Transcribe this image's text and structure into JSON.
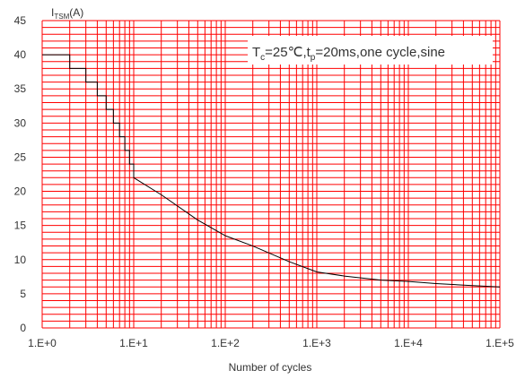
{
  "chart_data": {
    "type": "line",
    "title": "",
    "ylabel": {
      "symbol": "I",
      "subscript": "TSM",
      "unit": "(A)"
    },
    "xlabel": "Number of cycles",
    "xscale": "log",
    "xlim": [
      1,
      100000
    ],
    "ylim": [
      0,
      45
    ],
    "grid": true,
    "x_tick_labels": [
      "1.E+0",
      "1.E+1",
      "1.E+2",
      "1.E+3",
      "1.E+4",
      "1.E+5"
    ],
    "y_tick_labels": [
      "0",
      "5",
      "10",
      "15",
      "20",
      "25",
      "30",
      "35",
      "40",
      "45"
    ],
    "annotation": {
      "T": "T",
      "c": "c",
      "eq_temp": "=25℃,t",
      "p": "p",
      "rest": "=20ms,one cycle,sine"
    },
    "series": [
      {
        "x": [
          1,
          2,
          2,
          3,
          3,
          4,
          4,
          5,
          5,
          6,
          6,
          7,
          7,
          8,
          8,
          9,
          9,
          10,
          10,
          20,
          50,
          100,
          200,
          500,
          1000,
          2000,
          5000,
          10000,
          20000,
          50000,
          100000
        ],
        "y": [
          40,
          40,
          38,
          38,
          36,
          36,
          34,
          34,
          32,
          32,
          30,
          30,
          28,
          28,
          26,
          26,
          24,
          24,
          22,
          19.5,
          15.8,
          13.5,
          12,
          9.7,
          8.2,
          7.6,
          7,
          6.8,
          6.5,
          6.2,
          6
        ]
      }
    ],
    "colors": {
      "grid": "#ff0000",
      "curve": "#000000",
      "text": "#333333"
    }
  }
}
